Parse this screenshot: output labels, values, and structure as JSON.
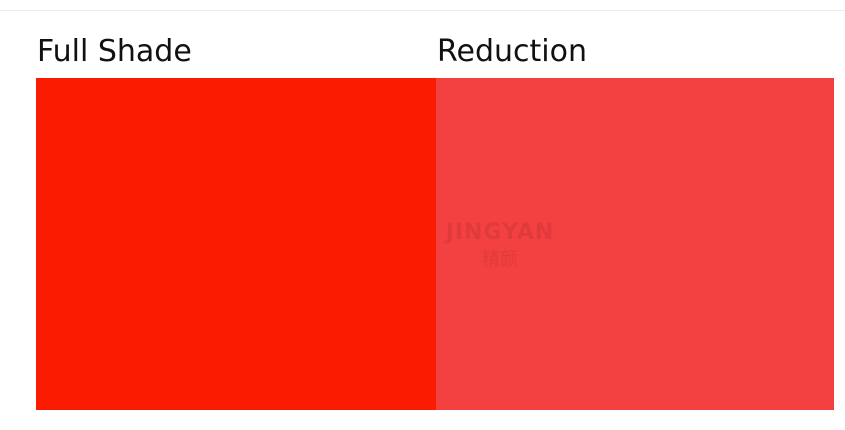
{
  "swatches": [
    {
      "label": "Full Shade",
      "color": "#fb1b00"
    },
    {
      "label": "Reduction",
      "color": "#f34041"
    }
  ],
  "watermark": {
    "text_en": "JINGYAN",
    "text_cn": "精颜"
  }
}
